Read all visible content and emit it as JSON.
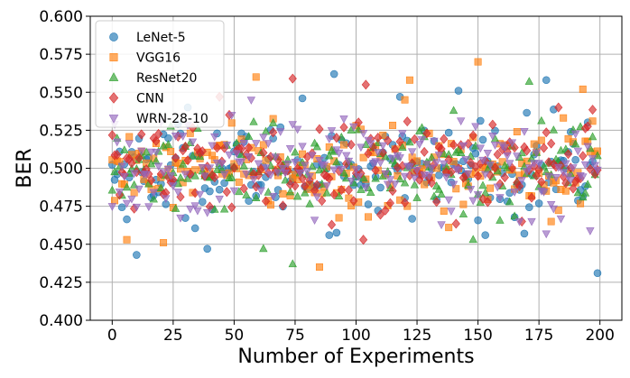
{
  "chart_data": {
    "type": "scatter",
    "title": "",
    "xlabel": "Number of Experiments",
    "ylabel": "BER",
    "xlim": [
      -9,
      209
    ],
    "ylim": [
      0.4,
      0.6
    ],
    "xticks": [
      0,
      25,
      50,
      75,
      100,
      125,
      150,
      175,
      200
    ],
    "yticks": [
      0.4,
      0.425,
      0.45,
      0.475,
      0.5,
      0.525,
      0.55,
      0.575,
      0.6
    ],
    "xtick_labels": [
      "0",
      "25",
      "50",
      "75",
      "100",
      "125",
      "150",
      "175",
      "200"
    ],
    "ytick_labels": [
      "0.400",
      "0.425",
      "0.450",
      "0.475",
      "0.500",
      "0.525",
      "0.550",
      "0.575",
      "0.600"
    ],
    "grid": true,
    "legend_position": "top-left",
    "num_points_per_series": 200,
    "series": [
      {
        "name": "LeNet-5",
        "marker": "circle",
        "color": "#1f77b4",
        "mean": 0.499,
        "spread": 0.018,
        "highlights": [
          {
            "x": 10,
            "y": 0.443
          },
          {
            "x": 31,
            "y": 0.54
          },
          {
            "x": 39,
            "y": 0.447
          },
          {
            "x": 78,
            "y": 0.546
          },
          {
            "x": 91,
            "y": 0.562
          },
          {
            "x": 118,
            "y": 0.547
          },
          {
            "x": 142,
            "y": 0.551
          },
          {
            "x": 169,
            "y": 0.457
          },
          {
            "x": 178,
            "y": 0.558
          },
          {
            "x": 199,
            "y": 0.431
          }
        ]
      },
      {
        "name": "VGG16",
        "marker": "square",
        "color": "#ff7f0e",
        "mean": 0.501,
        "spread": 0.018,
        "highlights": [
          {
            "x": 6,
            "y": 0.453
          },
          {
            "x": 21,
            "y": 0.451
          },
          {
            "x": 59,
            "y": 0.56
          },
          {
            "x": 85,
            "y": 0.435
          },
          {
            "x": 122,
            "y": 0.558
          },
          {
            "x": 150,
            "y": 0.57
          },
          {
            "x": 193,
            "y": 0.552
          }
        ]
      },
      {
        "name": "ResNet20",
        "marker": "triangle-up",
        "color": "#2ca02c",
        "mean": 0.5,
        "spread": 0.018,
        "highlights": [
          {
            "x": 62,
            "y": 0.447
          },
          {
            "x": 74,
            "y": 0.437
          },
          {
            "x": 148,
            "y": 0.453
          },
          {
            "x": 171,
            "y": 0.557
          }
        ]
      },
      {
        "name": "CNN",
        "marker": "diamond",
        "color": "#d62728",
        "mean": 0.5,
        "spread": 0.017,
        "highlights": [
          {
            "x": 44,
            "y": 0.547
          },
          {
            "x": 74,
            "y": 0.559
          },
          {
            "x": 103,
            "y": 0.453
          },
          {
            "x": 104,
            "y": 0.555
          },
          {
            "x": 183,
            "y": 0.54
          }
        ]
      },
      {
        "name": "WRN-28-10",
        "marker": "triangle-down",
        "color": "#9467bd",
        "mean": 0.5,
        "spread": 0.017,
        "highlights": [
          {
            "x": 83,
            "y": 0.466
          },
          {
            "x": 135,
            "y": 0.463
          },
          {
            "x": 178,
            "y": 0.457
          },
          {
            "x": 196,
            "y": 0.459
          }
        ]
      }
    ]
  }
}
